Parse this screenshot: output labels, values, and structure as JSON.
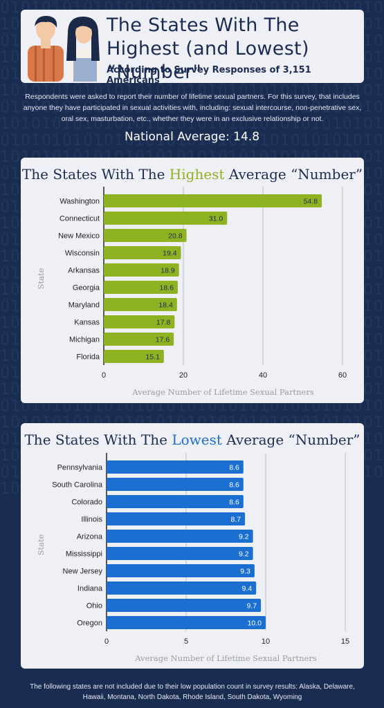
{
  "header": {
    "title": "The States With The Highest (and Lowest) “Number\"",
    "subtitle": "According to Survey Responses of 3,151 Americans"
  },
  "intro": "Respondents were asked to report their number of lifetime sexual partners. For this survey, that includes anyone they have participated in sexual activities with, including: sexual intercourse, non-penetrative sex, oral sex, masturbation, etc., whether they were in an exclusive relationship or not.",
  "national_average": "National Average: 14.8",
  "footnote": "The following states are not included due to their low population count in survey results: Alaska, Delaware, Hawaii, Montana, North Dakota, Rhode Island, South Dakota, Wyoming",
  "colors": {
    "background": "#1b2c52",
    "card": "#eff0f5",
    "highest_bar": "#8fb222",
    "lowest_bar": "#1a6fd1",
    "title_text": "#1b2c52"
  },
  "chart_data": [
    {
      "type": "bar",
      "orientation": "horizontal",
      "title_parts": [
        "The States With The ",
        "Highest",
        " Average “Number”"
      ],
      "xlabel": "Average Number of Lifetime Sexual Partners",
      "ylabel": "State",
      "xlim": [
        0,
        60
      ],
      "xticks": [
        0,
        20,
        40,
        60
      ],
      "grid": true,
      "categories": [
        "Washington",
        "Connecticut",
        "New Mexico",
        "Wisconsin",
        "Arkansas",
        "Georgia",
        "Maryland",
        "Kansas",
        "Michigan",
        "Florida"
      ],
      "values": [
        54.8,
        31.0,
        20.8,
        19.4,
        18.9,
        18.6,
        18.4,
        17.8,
        17.6,
        15.1
      ],
      "value_labels": [
        "54.8",
        "31.0",
        "20.8",
        "19.4",
        "18.9",
        "18.6",
        "18.4",
        "17.8",
        "17.6",
        "15.1"
      ],
      "color": "#8fb222"
    },
    {
      "type": "bar",
      "orientation": "horizontal",
      "title_parts": [
        "The States With The ",
        "Lowest",
        " Average “Number”"
      ],
      "xlabel": "Average Number of Lifetime Sexual Partners",
      "ylabel": "State",
      "xlim": [
        0,
        15
      ],
      "xticks": [
        0,
        5,
        10,
        15
      ],
      "grid": true,
      "categories": [
        "Pennsylvania",
        "South Carolina",
        "Colorado",
        "Illinois",
        "Arizona",
        "Mississippi",
        "New Jersey",
        "Indiana",
        "Ohio",
        "Oregon"
      ],
      "values": [
        8.6,
        8.6,
        8.6,
        8.7,
        9.2,
        9.2,
        9.3,
        9.4,
        9.7,
        10.0
      ],
      "value_labels": [
        "8.6",
        "8.6",
        "8.6",
        "8.7",
        "9.2",
        "9.2",
        "9.3",
        "9.4",
        "9.7",
        "10.0"
      ],
      "color": "#1a6fd1"
    }
  ]
}
